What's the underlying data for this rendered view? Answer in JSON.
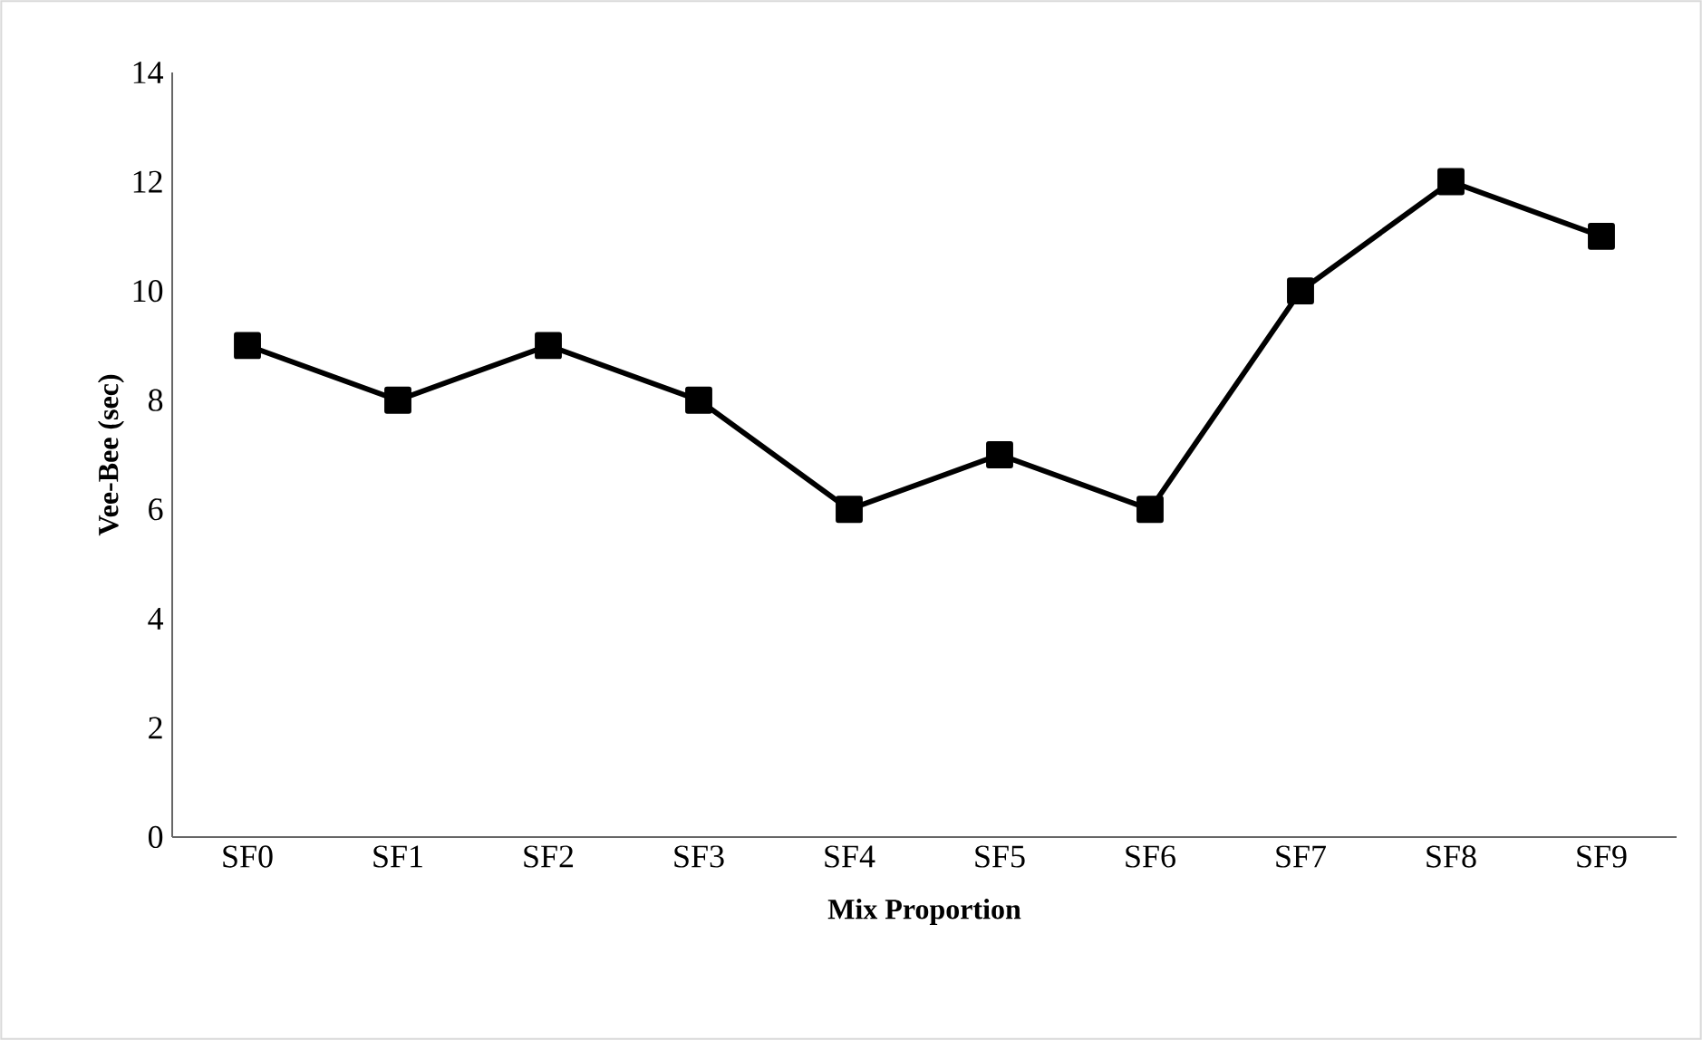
{
  "chart_data": {
    "type": "line",
    "xlabel": "Mix Proportion",
    "ylabel": "Vee-Bee (sec)",
    "categories": [
      "SF0",
      "SF1",
      "SF2",
      "SF3",
      "SF4",
      "SF5",
      "SF6",
      "SF7",
      "SF8",
      "SF9"
    ],
    "series": [
      {
        "color": "#000000",
        "values": [
          9,
          8,
          9,
          8,
          6,
          7,
          6,
          10,
          12,
          11
        ]
      }
    ],
    "ylim": [
      0,
      14
    ],
    "yticks": [
      0,
      2,
      4,
      6,
      8,
      10,
      12,
      14
    ],
    "marker": "square",
    "line_style": "solid",
    "grid": false
  }
}
